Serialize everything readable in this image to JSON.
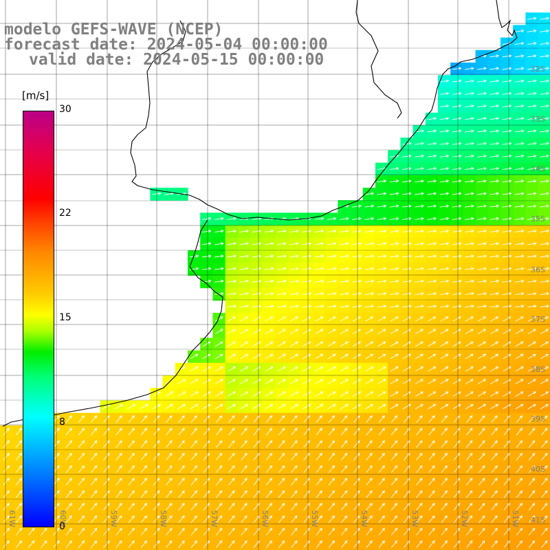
{
  "title": {
    "line1": "modelo GEFS-WAVE (NCEP)",
    "line2": "forecast date: 2024-05-04 00:00:00",
    "line3": "valid date: 2024-05-15 00:00:00"
  },
  "colorbar": {
    "unit": "[m/s]",
    "min": 0,
    "max": 30,
    "ticks": [
      "30",
      "22",
      "15",
      "8",
      "0"
    ],
    "tick_values": [
      30,
      22,
      15,
      8,
      0
    ]
  },
  "latitude_labels": [
    "32S",
    "33S",
    "34S",
    "35S",
    "36S",
    "37S",
    "38S",
    "39S",
    "40S",
    "41S"
  ],
  "longitude_labels": [
    "61W",
    "60W",
    "59W",
    "58W",
    "57W",
    "56W",
    "55W",
    "54W",
    "53W",
    "52W",
    "51W"
  ],
  "colors": {
    "land": "#ffffff",
    "grid": "#000000",
    "label": "#808080",
    "arrow": "#ffffff"
  }
}
